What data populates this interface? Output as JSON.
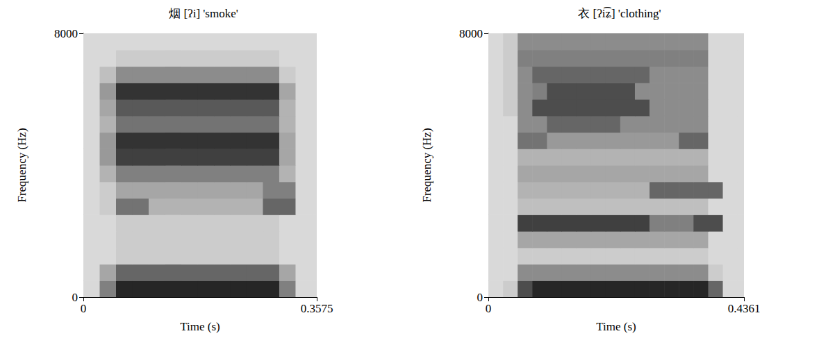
{
  "chart_data": [
    {
      "type": "heatmap",
      "title": "烟 [ʔi] 'smoke'",
      "x_label": "Time (s)",
      "y_label": "Frequency (Hz)",
      "xlim": [
        0,
        0.3575
      ],
      "ylim": [
        0,
        8000
      ],
      "xticks": [
        0,
        0.3575
      ],
      "yticks": [
        0,
        8000
      ],
      "zlim": [
        0,
        1
      ],
      "x_edges": [
        0,
        0.025,
        0.05,
        0.075,
        0.1,
        0.125,
        0.15,
        0.175,
        0.2,
        0.225,
        0.25,
        0.275,
        0.3,
        0.325,
        0.35,
        0.3575
      ],
      "y_edges": [
        0,
        500,
        1000,
        1500,
        2000,
        2500,
        3000,
        3500,
        4000,
        4500,
        5000,
        5500,
        6000,
        6500,
        7000,
        7500,
        8000
      ],
      "cells": [
        [
          0.15,
          0.5,
          0.85,
          0.85,
          0.85,
          0.85,
          0.85,
          0.85,
          0.85,
          0.85,
          0.85,
          0.85,
          0.5,
          0.15,
          0.15
        ],
        [
          0.15,
          0.35,
          0.6,
          0.6,
          0.6,
          0.6,
          0.6,
          0.6,
          0.6,
          0.6,
          0.6,
          0.6,
          0.35,
          0.15,
          0.15
        ],
        [
          0.15,
          0.15,
          0.2,
          0.2,
          0.2,
          0.2,
          0.2,
          0.2,
          0.2,
          0.2,
          0.2,
          0.2,
          0.15,
          0.15,
          0.15
        ],
        [
          0.15,
          0.15,
          0.2,
          0.2,
          0.2,
          0.2,
          0.2,
          0.2,
          0.2,
          0.2,
          0.2,
          0.2,
          0.15,
          0.15,
          0.15
        ],
        [
          0.15,
          0.15,
          0.2,
          0.2,
          0.2,
          0.2,
          0.2,
          0.2,
          0.2,
          0.2,
          0.2,
          0.2,
          0.15,
          0.15,
          0.15
        ],
        [
          0.15,
          0.2,
          0.55,
          0.55,
          0.3,
          0.3,
          0.3,
          0.3,
          0.3,
          0.3,
          0.3,
          0.6,
          0.6,
          0.15,
          0.15
        ],
        [
          0.15,
          0.2,
          0.35,
          0.35,
          0.35,
          0.35,
          0.35,
          0.35,
          0.35,
          0.35,
          0.35,
          0.5,
          0.5,
          0.15,
          0.15
        ],
        [
          0.15,
          0.3,
          0.5,
          0.5,
          0.5,
          0.5,
          0.5,
          0.5,
          0.5,
          0.5,
          0.5,
          0.5,
          0.3,
          0.15,
          0.15
        ],
        [
          0.15,
          0.4,
          0.75,
          0.75,
          0.75,
          0.75,
          0.75,
          0.75,
          0.75,
          0.75,
          0.75,
          0.75,
          0.35,
          0.15,
          0.15
        ],
        [
          0.15,
          0.4,
          0.8,
          0.8,
          0.8,
          0.8,
          0.8,
          0.8,
          0.8,
          0.8,
          0.8,
          0.8,
          0.35,
          0.15,
          0.15
        ],
        [
          0.15,
          0.3,
          0.55,
          0.55,
          0.55,
          0.55,
          0.55,
          0.55,
          0.55,
          0.55,
          0.55,
          0.55,
          0.3,
          0.15,
          0.15
        ],
        [
          0.15,
          0.35,
          0.65,
          0.65,
          0.65,
          0.65,
          0.65,
          0.65,
          0.65,
          0.65,
          0.65,
          0.65,
          0.3,
          0.15,
          0.15
        ],
        [
          0.15,
          0.4,
          0.8,
          0.8,
          0.8,
          0.8,
          0.8,
          0.8,
          0.8,
          0.8,
          0.8,
          0.8,
          0.35,
          0.15,
          0.15
        ],
        [
          0.15,
          0.25,
          0.45,
          0.45,
          0.45,
          0.45,
          0.45,
          0.45,
          0.45,
          0.45,
          0.45,
          0.45,
          0.2,
          0.15,
          0.15
        ],
        [
          0.15,
          0.15,
          0.2,
          0.2,
          0.2,
          0.2,
          0.2,
          0.2,
          0.2,
          0.2,
          0.2,
          0.2,
          0.15,
          0.15,
          0.15
        ],
        [
          0.15,
          0.15,
          0.15,
          0.15,
          0.15,
          0.15,
          0.15,
          0.15,
          0.15,
          0.15,
          0.15,
          0.15,
          0.15,
          0.15,
          0.15
        ]
      ]
    },
    {
      "type": "heatmap",
      "title": "衣 [ʔi͡ʑ] 'clothing'",
      "x_label": "Time (s)",
      "y_label": "Frequency (Hz)",
      "xlim": [
        0,
        0.4361
      ],
      "ylim": [
        0,
        8000
      ],
      "xticks": [
        0,
        0.4361
      ],
      "yticks": [
        0,
        8000
      ],
      "zlim": [
        0,
        1
      ],
      "x_edges": [
        0,
        0.025,
        0.05,
        0.075,
        0.1,
        0.125,
        0.15,
        0.175,
        0.2,
        0.225,
        0.25,
        0.275,
        0.3,
        0.325,
        0.35,
        0.375,
        0.4,
        0.425,
        0.4361
      ],
      "y_edges": [
        0,
        500,
        1000,
        1500,
        2000,
        2500,
        3000,
        3500,
        4000,
        4500,
        5000,
        5500,
        6000,
        6500,
        7000,
        7500,
        8000
      ],
      "cells": [
        [
          0.15,
          0.2,
          0.7,
          0.85,
          0.85,
          0.85,
          0.85,
          0.85,
          0.85,
          0.85,
          0.85,
          0.85,
          0.85,
          0.85,
          0.85,
          0.6,
          0.15,
          0.15
        ],
        [
          0.15,
          0.15,
          0.45,
          0.45,
          0.45,
          0.45,
          0.45,
          0.45,
          0.45,
          0.45,
          0.45,
          0.45,
          0.45,
          0.45,
          0.45,
          0.2,
          0.15,
          0.15
        ],
        [
          0.15,
          0.15,
          0.2,
          0.2,
          0.2,
          0.2,
          0.2,
          0.2,
          0.2,
          0.2,
          0.2,
          0.2,
          0.2,
          0.2,
          0.2,
          0.15,
          0.15,
          0.15
        ],
        [
          0.15,
          0.15,
          0.35,
          0.35,
          0.35,
          0.35,
          0.35,
          0.35,
          0.35,
          0.35,
          0.35,
          0.35,
          0.35,
          0.35,
          0.35,
          0.15,
          0.15,
          0.15
        ],
        [
          0.15,
          0.15,
          0.75,
          0.75,
          0.75,
          0.75,
          0.75,
          0.75,
          0.75,
          0.75,
          0.75,
          0.5,
          0.5,
          0.5,
          0.7,
          0.7,
          0.15,
          0.15
        ],
        [
          0.15,
          0.15,
          0.25,
          0.25,
          0.25,
          0.25,
          0.25,
          0.25,
          0.25,
          0.25,
          0.25,
          0.25,
          0.25,
          0.25,
          0.25,
          0.15,
          0.15,
          0.15
        ],
        [
          0.15,
          0.15,
          0.3,
          0.3,
          0.3,
          0.3,
          0.3,
          0.3,
          0.3,
          0.3,
          0.3,
          0.6,
          0.6,
          0.6,
          0.6,
          0.6,
          0.15,
          0.15
        ],
        [
          0.15,
          0.15,
          0.35,
          0.35,
          0.35,
          0.35,
          0.35,
          0.35,
          0.35,
          0.35,
          0.35,
          0.35,
          0.35,
          0.35,
          0.35,
          0.15,
          0.15,
          0.15
        ],
        [
          0.15,
          0.15,
          0.3,
          0.3,
          0.3,
          0.3,
          0.3,
          0.3,
          0.3,
          0.3,
          0.3,
          0.3,
          0.3,
          0.3,
          0.3,
          0.15,
          0.15,
          0.15
        ],
        [
          0.15,
          0.15,
          0.55,
          0.55,
          0.4,
          0.4,
          0.4,
          0.4,
          0.4,
          0.4,
          0.4,
          0.4,
          0.4,
          0.6,
          0.6,
          0.15,
          0.15,
          0.15
        ],
        [
          0.15,
          0.15,
          0.45,
          0.45,
          0.6,
          0.6,
          0.6,
          0.6,
          0.6,
          0.45,
          0.45,
          0.45,
          0.45,
          0.45,
          0.45,
          0.15,
          0.15,
          0.15
        ],
        [
          0.15,
          0.2,
          0.45,
          0.7,
          0.7,
          0.7,
          0.7,
          0.7,
          0.7,
          0.7,
          0.7,
          0.45,
          0.45,
          0.45,
          0.45,
          0.15,
          0.15,
          0.15
        ],
        [
          0.15,
          0.2,
          0.45,
          0.5,
          0.7,
          0.7,
          0.7,
          0.7,
          0.7,
          0.7,
          0.45,
          0.45,
          0.45,
          0.45,
          0.45,
          0.15,
          0.15,
          0.15
        ],
        [
          0.15,
          0.2,
          0.45,
          0.6,
          0.6,
          0.6,
          0.6,
          0.6,
          0.6,
          0.6,
          0.6,
          0.45,
          0.45,
          0.45,
          0.45,
          0.15,
          0.15,
          0.15
        ],
        [
          0.15,
          0.2,
          0.5,
          0.5,
          0.5,
          0.5,
          0.5,
          0.5,
          0.5,
          0.5,
          0.5,
          0.5,
          0.5,
          0.5,
          0.5,
          0.15,
          0.15,
          0.15
        ],
        [
          0.15,
          0.2,
          0.45,
          0.45,
          0.45,
          0.45,
          0.45,
          0.45,
          0.45,
          0.45,
          0.45,
          0.45,
          0.45,
          0.45,
          0.45,
          0.15,
          0.15,
          0.15
        ]
      ]
    }
  ]
}
